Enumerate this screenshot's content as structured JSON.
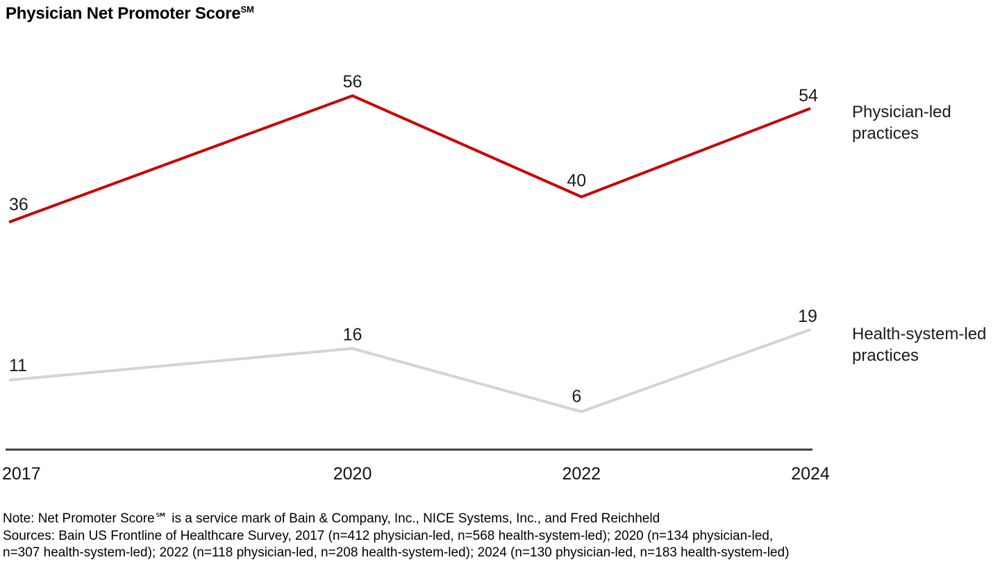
{
  "title": {
    "text": "Physician Net Promoter Score",
    "superscript": "SM"
  },
  "chart_data": {
    "type": "line",
    "title": "Physician Net Promoter Score℠",
    "x": [
      2017,
      2020,
      2022,
      2024
    ],
    "x_tick_labels": [
      "2017",
      "2020",
      "2022",
      "2024"
    ],
    "series": [
      {
        "name": "Physician-led practices",
        "values": [
          36,
          56,
          40,
          54
        ],
        "color": "#cc0000"
      },
      {
        "name": "Health-system-led practices",
        "values": [
          11,
          16,
          6,
          19
        ],
        "color": "#d4d4d4"
      }
    ],
    "ylim": [
      0,
      62
    ],
    "grid": false,
    "data_labels": true,
    "legend_position": "right-of-line-ends",
    "axis_color": "#3c3c3c",
    "label_color": "#1a1a1a"
  },
  "footnote_lines": [
    "Note: Net Promoter Score℠ is a service mark of Bain & Company, Inc., NICE Systems, Inc., and Fred Reichheld",
    "Sources: Bain US Frontline of Healthcare Survey, 2017 (n=412 physician-led, n=568 health-system-led); 2020 (n=134 physician-led,",
    "n=307 health-system-led); 2022 (n=118 physician-led, n=208 health-system-led); 2024 (n=130 physician-led, n=183 health-system-led)"
  ]
}
